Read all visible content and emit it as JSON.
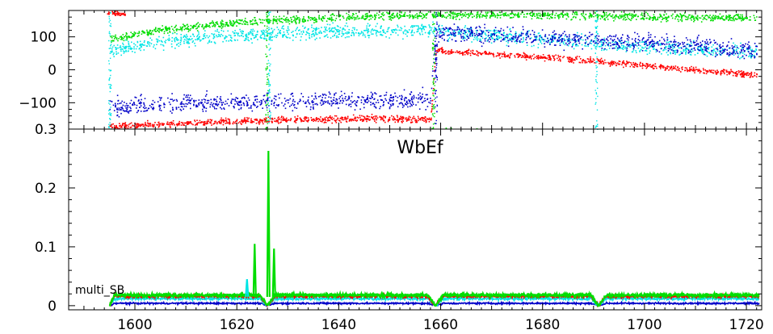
{
  "chart_data": [
    {
      "type": "scatter",
      "panel": "phase",
      "title": "",
      "xlabel": "",
      "ylabel": "",
      "xlim": [
        1587,
        1723
      ],
      "ylim": [
        -180,
        180
      ],
      "x_ticks": [
        1600,
        1620,
        1640,
        1660,
        1680,
        1700,
        1720
      ],
      "y_ticks": [
        100,
        0,
        -100
      ],
      "y_tick_labels": [
        "100",
        "0",
        "−100"
      ],
      "colors": {
        "red": "#ff0000",
        "blue": "#0000c8",
        "cyan": "#00e5e5",
        "green": "#00dd00"
      },
      "series": [
        {
          "color": "green",
          "trend": [
            [
              1595,
              95
            ],
            [
              1605,
              122
            ],
            [
              1620,
              145
            ],
            [
              1640,
              160
            ],
            [
              1660,
              170
            ],
            [
              1680,
              168
            ],
            [
              1700,
              163
            ],
            [
              1722,
              158
            ]
          ],
          "scatter": 10
        },
        {
          "color": "cyan",
          "trend": [
            [
              1595,
              60
            ],
            [
              1610,
              95
            ],
            [
              1625,
              110
            ],
            [
              1640,
              118
            ],
            [
              1658,
              122
            ],
            [
              1659,
              118
            ],
            [
              1680,
              95
            ],
            [
              1700,
              72
            ],
            [
              1722,
              55
            ]
          ],
          "scatter": 18
        },
        {
          "color": "blue",
          "trend": [
            [
              1595,
              -110
            ],
            [
              1610,
              -100
            ],
            [
              1630,
              -95
            ],
            [
              1645,
              -90
            ],
            [
              1658,
              -88
            ],
            [
              1659,
              115
            ],
            [
              1680,
              100
            ],
            [
              1700,
              85
            ],
            [
              1722,
              60
            ]
          ],
          "scatter": 22
        },
        {
          "color": "red",
          "trend": [
            [
              1595,
              -170
            ],
            [
              1610,
              -160
            ],
            [
              1630,
              -150
            ],
            [
              1645,
              -145
            ],
            [
              1658,
              -150
            ],
            [
              1659,
              60
            ],
            [
              1680,
              40
            ],
            [
              1700,
              15
            ],
            [
              1722,
              -15
            ]
          ],
          "scatter": 8
        }
      ]
    },
    {
      "type": "line",
      "panel": "amplitude",
      "title": "WbEf",
      "annotation": "multi_SB",
      "xlabel": "",
      "ylabel": "",
      "xlim": [
        1587,
        1723
      ],
      "ylim": [
        -0.007,
        0.3
      ],
      "top_axis_label": "0.3",
      "x_ticks": [
        1600,
        1620,
        1640,
        1660,
        1680,
        1700,
        1720
      ],
      "y_ticks": [
        0,
        0.1,
        0.2
      ],
      "y_tick_labels": [
        "0",
        "0.1",
        "0.2"
      ],
      "colors": {
        "red": "#ff0000",
        "blue": "#0000c8",
        "cyan": "#00e5e5",
        "green": "#00dd00"
      },
      "baseline": {
        "green": 0.018,
        "red": 0.016,
        "cyan": 0.012,
        "blue": 0.004
      },
      "dips_x": [
        1626,
        1659,
        1691
      ],
      "spikes": [
        {
          "color": "cyan",
          "x": 1622,
          "y": 0.045
        },
        {
          "color": "green",
          "x": 1623.5,
          "y": 0.105
        },
        {
          "color": "green",
          "x": 1626.2,
          "y": 0.263
        },
        {
          "color": "green",
          "x": 1627.3,
          "y": 0.097
        }
      ]
    }
  ]
}
